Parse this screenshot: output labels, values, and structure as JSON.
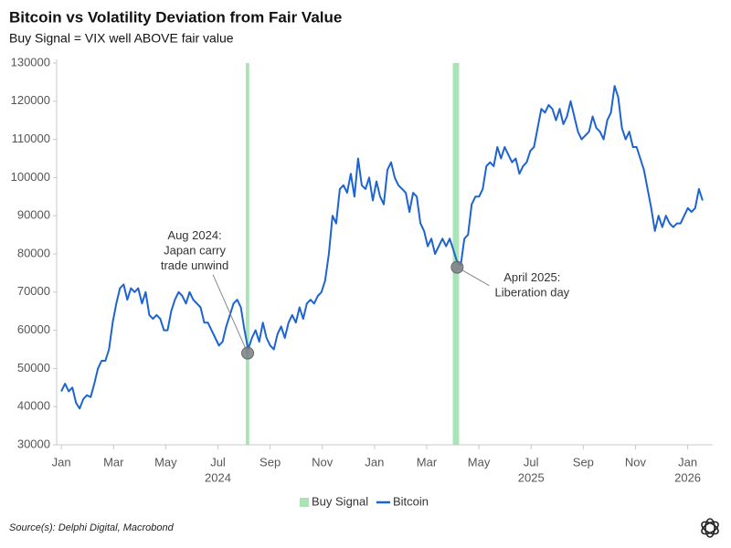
{
  "chart_data": {
    "type": "line",
    "title": "Bitcoin vs Volatility Deviation from Fair Value",
    "subtitle": "Buy Signal = VIX well ABOVE fair value",
    "source": "Source(s): Delphi Digital, Macrobond",
    "legend": "bottom",
    "grid": false,
    "xlim": [
      2023.985,
      2026.08
    ],
    "ylim": [
      30000,
      130000
    ],
    "yticks": [
      30000,
      40000,
      50000,
      60000,
      70000,
      80000,
      90000,
      100000,
      110000,
      120000,
      130000
    ],
    "xticks": [
      {
        "value": 2024,
        "label": "Jan"
      },
      {
        "value": 2024.1667,
        "label": "Mar"
      },
      {
        "value": 2024.3333,
        "label": "May"
      },
      {
        "value": 2024.5,
        "label": "Jul"
      },
      {
        "value": 2024.6667,
        "label": "Sep"
      },
      {
        "value": 2024.8333,
        "label": "Nov"
      },
      {
        "value": 2025,
        "label": "Jan"
      },
      {
        "value": 2025.1667,
        "label": "Mar"
      },
      {
        "value": 2025.3333,
        "label": "May"
      },
      {
        "value": 2025.5,
        "label": "Jul"
      },
      {
        "value": 2025.6667,
        "label": "Sep"
      },
      {
        "value": 2025.8333,
        "label": "Nov"
      },
      {
        "value": 2026,
        "label": "Jan"
      }
    ],
    "x_year_ticks": [
      {
        "value": 2024.5,
        "label": "2024"
      },
      {
        "value": 2025.5,
        "label": "2025"
      },
      {
        "value": 2026,
        "label": "2026"
      }
    ],
    "bands": {
      "name": "Buy Signal",
      "color": "#a8e4b6",
      "ranges": [
        [
          2024.589,
          2024.6
        ],
        [
          2025.25,
          2025.27
        ]
      ]
    },
    "annotations": [
      {
        "lines": [
          "Aug 2024:",
          "Japan carry",
          "trade unwind"
        ],
        "x": 2024.595,
        "y": 54000
      },
      {
        "lines": [
          "April 2025:",
          "Liberation day"
        ],
        "x": 2025.264,
        "y": 76500
      }
    ],
    "x": [
      2024.0,
      2024.0117,
      2024.0234,
      2024.0351,
      2024.0468,
      2024.0585,
      2024.0702,
      2024.0819,
      2024.0936,
      2024.1053,
      2024.117,
      2024.1287,
      2024.1404,
      2024.1521,
      2024.1638,
      2024.1755,
      2024.1872,
      2024.1989,
      2024.2106,
      2024.2223,
      2024.234,
      2024.2457,
      2024.2574,
      2024.2691,
      2024.2808,
      2024.2925,
      2024.3042,
      2024.3159,
      2024.3276,
      2024.3393,
      2024.351,
      2024.3627,
      2024.3744,
      2024.3861,
      2024.3978,
      2024.4095,
      2024.4212,
      2024.4329,
      2024.4446,
      2024.4563,
      2024.468,
      2024.4797,
      2024.4914,
      2024.5031,
      2024.5148,
      2024.5265,
      2024.5382,
      2024.5499,
      2024.5616,
      2024.5733,
      2024.585,
      2024.5967,
      2024.6084,
      2024.6201,
      2024.6318,
      2024.6435,
      2024.6552,
      2024.6669,
      2024.6786,
      2024.6903,
      2024.702,
      2024.7137,
      2024.7254,
      2024.7371,
      2024.7488,
      2024.7605,
      2024.7722,
      2024.7839,
      2024.7956,
      2024.8073,
      2024.819,
      2024.8307,
      2024.8424,
      2024.8541,
      2024.8658,
      2024.8775,
      2024.8892,
      2024.9009,
      2024.9126,
      2024.9243,
      2024.936,
      2024.9477,
      2024.9594,
      2024.9711,
      2024.9828,
      2024.9945,
      2025.0062,
      2025.0179,
      2025.0296,
      2025.0413,
      2025.053,
      2025.0647,
      2025.0764,
      2025.0881,
      2025.0998,
      2025.1115,
      2025.1232,
      2025.1349,
      2025.1466,
      2025.1583,
      2025.17,
      2025.1817,
      2025.1934,
      2025.2051,
      2025.2168,
      2025.2285,
      2025.2402,
      2025.2519,
      2025.2636,
      2025.2753,
      2025.287,
      2025.2987,
      2025.3104,
      2025.3221,
      2025.3338,
      2025.3455,
      2025.3572,
      2025.3689,
      2025.3806,
      2025.3923,
      2025.404,
      2025.4157,
      2025.4274,
      2025.4391,
      2025.4508,
      2025.4625,
      2025.4742,
      2025.4859,
      2025.4976,
      2025.5093,
      2025.521,
      2025.5327,
      2025.5444,
      2025.5561,
      2025.5678,
      2025.5795,
      2025.5912,
      2025.6029,
      2025.6146,
      2025.6263,
      2025.638,
      2025.6497,
      2025.6614,
      2025.6731,
      2025.6848,
      2025.6965,
      2025.7082,
      2025.7199,
      2025.7316,
      2025.7433,
      2025.755,
      2025.7667,
      2025.7784,
      2025.7901,
      2025.8018,
      2025.8135,
      2025.8252,
      2025.8369,
      2025.8486,
      2025.8603,
      2025.872,
      2025.8837,
      2025.8954,
      2025.9071,
      2025.9188,
      2025.9305,
      2025.9422,
      2025.9539,
      2025.9656,
      2025.9773,
      2025.989,
      2026.0007,
      2026.0124,
      2026.0241,
      2026.0358,
      2026.0475
    ],
    "series": [
      {
        "name": "Bitcoin",
        "color": "#1d64d0",
        "values": [
          44000,
          46000,
          44000,
          45000,
          41000,
          39500,
          42000,
          43000,
          42500,
          46000,
          50000,
          52000,
          52000,
          55000,
          62000,
          67000,
          71000,
          72000,
          68000,
          71000,
          70000,
          71000,
          67000,
          70000,
          64000,
          63000,
          64000,
          63000,
          60000,
          60000,
          65000,
          68000,
          70000,
          69000,
          67000,
          70000,
          68000,
          67000,
          66000,
          62000,
          62000,
          60000,
          58000,
          56000,
          57000,
          61000,
          64000,
          67000,
          68000,
          66000,
          60000,
          55000,
          58000,
          60000,
          57000,
          62000,
          58000,
          56000,
          55000,
          59000,
          61000,
          58000,
          62000,
          64000,
          62000,
          66000,
          63000,
          67000,
          68000,
          67000,
          69000,
          70000,
          73000,
          80000,
          90000,
          88000,
          97000,
          98000,
          96000,
          101000,
          95000,
          105000,
          98000,
          97000,
          100000,
          94000,
          99000,
          95000,
          93000,
          102000,
          104000,
          100000,
          98000,
          97000,
          96000,
          91000,
          96000,
          95000,
          88000,
          86000,
          82000,
          84000,
          80000,
          82000,
          84000,
          82000,
          84000,
          81000,
          78000,
          77000,
          84000,
          85000,
          93000,
          95000,
          95000,
          97000,
          103000,
          104000,
          103000,
          108000,
          105000,
          108000,
          106000,
          104000,
          105000,
          101000,
          103000,
          104000,
          107000,
          108000,
          113000,
          118000,
          117000,
          119000,
          118000,
          115000,
          118000,
          114000,
          116000,
          120000,
          116000,
          112000,
          110000,
          111000,
          112000,
          116000,
          113000,
          112000,
          110000,
          115000,
          117000,
          124000,
          121000,
          113000,
          110000,
          112000,
          108000,
          108000,
          105000,
          102000,
          97000,
          92000,
          86000,
          90000,
          87000,
          90000,
          88000,
          87000,
          88000,
          88000,
          90000,
          92000,
          91000,
          92000,
          97000,
          94000
        ]
      }
    ]
  }
}
